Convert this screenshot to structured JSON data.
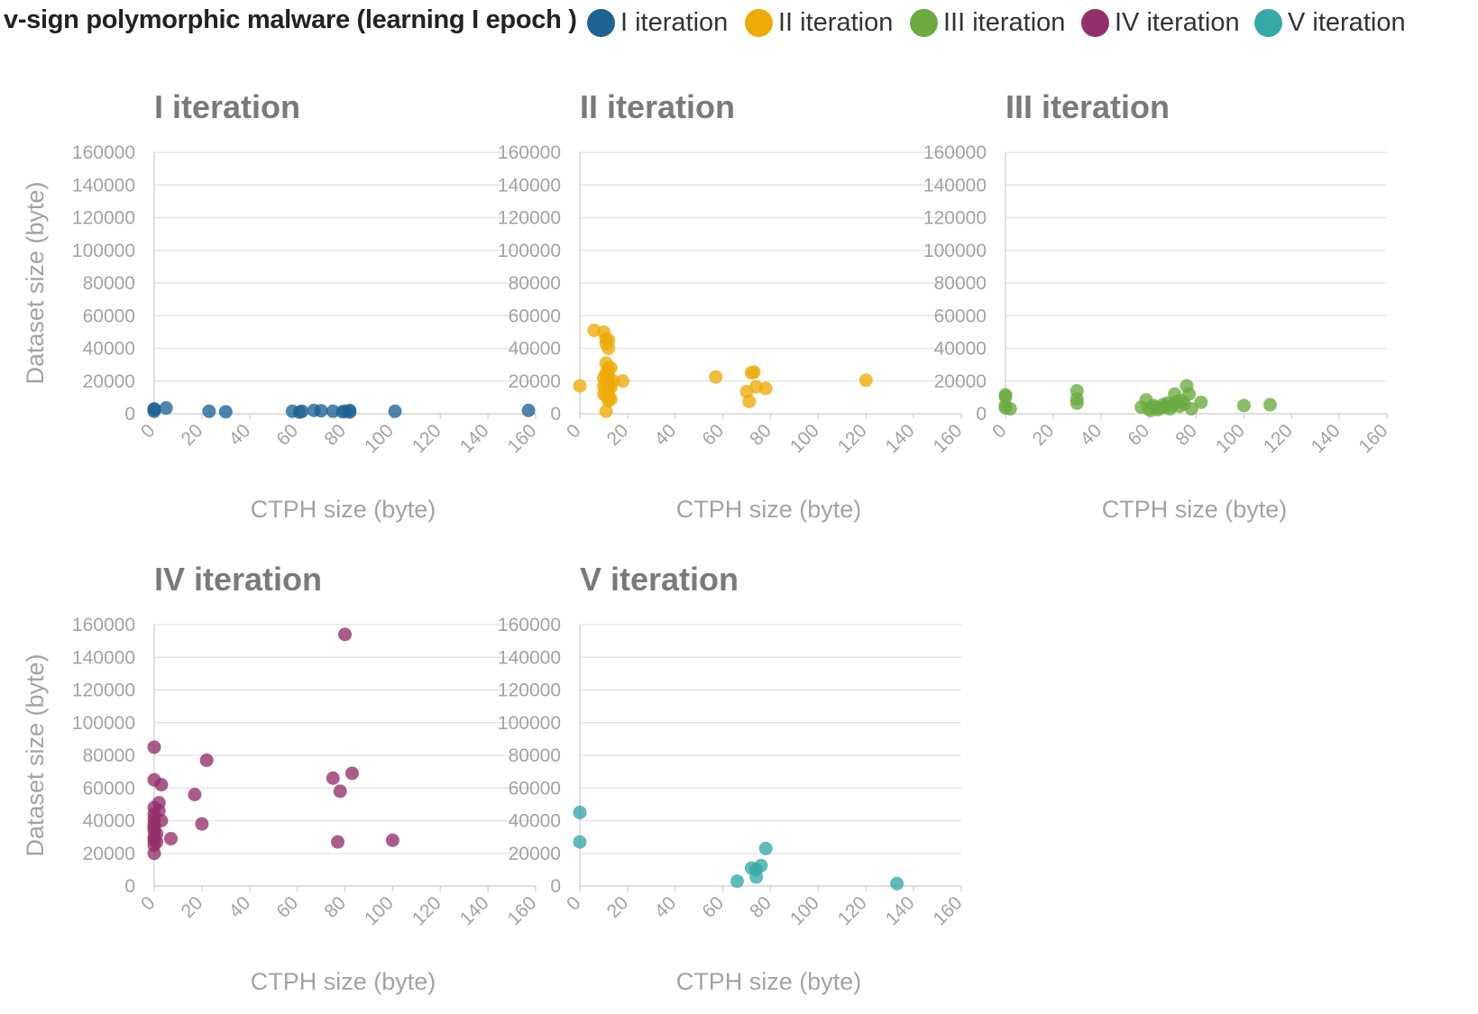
{
  "title": "v-sign polymorphic malware (learning I epoch )",
  "legend": [
    {
      "label": "I iteration",
      "color": "#1f6393"
    },
    {
      "label": "II iteration",
      "color": "#eeaa07"
    },
    {
      "label": "III iteration",
      "color": "#6aaa3f"
    },
    {
      "label": "IV iteration",
      "color": "#943069"
    },
    {
      "label": "V iteration",
      "color": "#35a8a6"
    }
  ],
  "chart_data": [
    {
      "type": "scatter",
      "title": "I iteration",
      "xlabel": "CTPH size (byte)",
      "ylabel": "Dataset size (byte)",
      "xlim": [
        0,
        160
      ],
      "ylim": [
        0,
        160000
      ],
      "xticks": [
        "0",
        "20",
        "40",
        "60",
        "80",
        "100",
        "120",
        "140",
        "160"
      ],
      "yticks": [
        "0",
        "20000",
        "40000",
        "60000",
        "80000",
        "100000",
        "120000",
        "140000",
        "160000"
      ],
      "grid": true,
      "color": "#1f6393",
      "points": [
        [
          0,
          3000
        ],
        [
          0,
          1500
        ],
        [
          0,
          2500
        ],
        [
          5,
          3500
        ],
        [
          23,
          1500
        ],
        [
          30,
          1200
        ],
        [
          58,
          1500
        ],
        [
          61,
          1000
        ],
        [
          62,
          1500
        ],
        [
          67,
          2000
        ],
        [
          70,
          1800
        ],
        [
          75,
          1500
        ],
        [
          79,
          1200
        ],
        [
          80,
          1500
        ],
        [
          82,
          1000
        ],
        [
          82,
          2000
        ],
        [
          101,
          1500
        ],
        [
          157,
          2000
        ]
      ]
    },
    {
      "type": "scatter",
      "title": "II iteration",
      "xlabel": "CTPH size (byte)",
      "ylabel": "",
      "xlim": [
        0,
        160
      ],
      "ylim": [
        0,
        160000
      ],
      "xticks": [
        "0",
        "20",
        "40",
        "60",
        "80",
        "100",
        "120",
        "140",
        "160"
      ],
      "yticks": [
        "0",
        "20000",
        "40000",
        "60000",
        "80000",
        "100000",
        "120000",
        "140000",
        "160000"
      ],
      "grid": true,
      "color": "#eeaa07",
      "points": [
        [
          0,
          17000
        ],
        [
          6,
          51000
        ],
        [
          10,
          50000
        ],
        [
          11,
          46000
        ],
        [
          11,
          43000
        ],
        [
          12,
          45000
        ],
        [
          12,
          40000
        ],
        [
          11,
          31000
        ],
        [
          12,
          28000
        ],
        [
          13,
          28000
        ],
        [
          11,
          25000
        ],
        [
          12,
          23000
        ],
        [
          10,
          22000
        ],
        [
          11,
          20000
        ],
        [
          12,
          19000
        ],
        [
          10,
          17000
        ],
        [
          11,
          15000
        ],
        [
          12,
          14000
        ],
        [
          10,
          12000
        ],
        [
          11,
          11000
        ],
        [
          12,
          10000
        ],
        [
          13,
          9000
        ],
        [
          14,
          20000
        ],
        [
          13,
          16000
        ],
        [
          12,
          8000
        ],
        [
          11,
          1500
        ],
        [
          18,
          20000
        ],
        [
          57,
          22500
        ],
        [
          72,
          25000
        ],
        [
          73,
          25500
        ],
        [
          74,
          16500
        ],
        [
          70,
          13500
        ],
        [
          71,
          7500
        ],
        [
          78,
          15500
        ],
        [
          120,
          20500
        ]
      ]
    },
    {
      "type": "scatter",
      "title": "III iteration",
      "xlabel": "CTPH size (byte)",
      "ylabel": "",
      "xlim": [
        0,
        160
      ],
      "ylim": [
        0,
        160000
      ],
      "xticks": [
        "0",
        "20",
        "40",
        "60",
        "80",
        "100",
        "120",
        "140",
        "160"
      ],
      "yticks": [
        "0",
        "20000",
        "40000",
        "60000",
        "80000",
        "100000",
        "120000",
        "140000",
        "160000"
      ],
      "grid": true,
      "color": "#6aaa3f",
      "points": [
        [
          0,
          11500
        ],
        [
          0,
          10500
        ],
        [
          0,
          5000
        ],
        [
          0,
          3500
        ],
        [
          2,
          3000
        ],
        [
          30,
          14000
        ],
        [
          30,
          9000
        ],
        [
          30,
          6500
        ],
        [
          57,
          4000
        ],
        [
          59,
          8500
        ],
        [
          60,
          3000
        ],
        [
          61,
          2000
        ],
        [
          62,
          5000
        ],
        [
          63,
          4000
        ],
        [
          64,
          2500
        ],
        [
          65,
          3500
        ],
        [
          66,
          5500
        ],
        [
          67,
          4000
        ],
        [
          68,
          6500
        ],
        [
          69,
          3000
        ],
        [
          70,
          5000
        ],
        [
          71,
          12000
        ],
        [
          72,
          7500
        ],
        [
          73,
          4500
        ],
        [
          74,
          8000
        ],
        [
          75,
          6000
        ],
        [
          76,
          17000
        ],
        [
          77,
          12000
        ],
        [
          78,
          3000
        ],
        [
          82,
          7000
        ],
        [
          100,
          5000
        ],
        [
          111,
          5500
        ]
      ]
    },
    {
      "type": "scatter",
      "title": "IV iteration",
      "xlabel": "CTPH size (byte)",
      "ylabel": "Dataset size (byte)",
      "xlim": [
        0,
        160
      ],
      "ylim": [
        0,
        160000
      ],
      "xticks": [
        "0",
        "20",
        "40",
        "60",
        "80",
        "100",
        "120",
        "140",
        "160"
      ],
      "yticks": [
        "0",
        "20000",
        "40000",
        "60000",
        "80000",
        "100000",
        "120000",
        "140000",
        "160000"
      ],
      "grid": true,
      "color": "#943069",
      "points": [
        [
          0,
          85000
        ],
        [
          0,
          65000
        ],
        [
          3,
          62000
        ],
        [
          0,
          48000
        ],
        [
          2,
          51000
        ],
        [
          2,
          46000
        ],
        [
          0,
          44000
        ],
        [
          0,
          41000
        ],
        [
          3,
          40000
        ],
        [
          0,
          38000
        ],
        [
          0,
          36000
        ],
        [
          0,
          34000
        ],
        [
          1,
          32000
        ],
        [
          0,
          30000
        ],
        [
          0,
          28000
        ],
        [
          1,
          27000
        ],
        [
          0,
          25000
        ],
        [
          0,
          20000
        ],
        [
          7,
          29000
        ],
        [
          17,
          56000
        ],
        [
          20,
          38000
        ],
        [
          22,
          77000
        ],
        [
          75,
          66000
        ],
        [
          78,
          58000
        ],
        [
          77,
          27000
        ],
        [
          80,
          154000
        ],
        [
          83,
          69000
        ],
        [
          100,
          28000
        ]
      ]
    },
    {
      "type": "scatter",
      "title": "V iteration",
      "xlabel": "CTPH size (byte)",
      "ylabel": "",
      "xlim": [
        0,
        160
      ],
      "ylim": [
        0,
        160000
      ],
      "xticks": [
        "0",
        "20",
        "40",
        "60",
        "80",
        "100",
        "120",
        "140",
        "160"
      ],
      "yticks": [
        "0",
        "20000",
        "40000",
        "60000",
        "80000",
        "100000",
        "120000",
        "140000",
        "160000"
      ],
      "grid": true,
      "color": "#35a8a6",
      "points": [
        [
          0,
          45000
        ],
        [
          0,
          27000
        ],
        [
          66,
          3000
        ],
        [
          72,
          11000
        ],
        [
          74,
          10000
        ],
        [
          74,
          5500
        ],
        [
          76,
          12500
        ],
        [
          78,
          23000
        ],
        [
          133,
          1500
        ]
      ]
    }
  ]
}
